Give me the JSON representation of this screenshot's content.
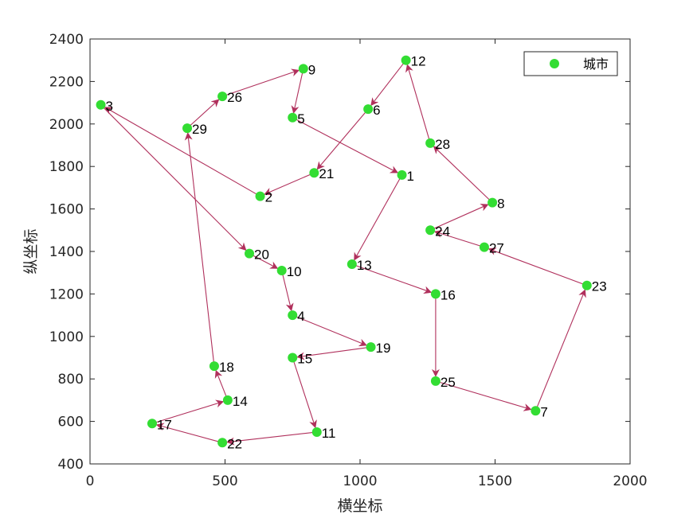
{
  "chart_data": {
    "type": "scatter",
    "xlabel": "横坐标",
    "ylabel": "纵坐标",
    "xlim": [
      0,
      2000
    ],
    "ylim": [
      400,
      2400
    ],
    "xticks": [
      "0",
      "500",
      "1000",
      "1500",
      "2000"
    ],
    "yticks": [
      "400",
      "600",
      "800",
      "1000",
      "1200",
      "1400",
      "1600",
      "1800",
      "2000",
      "2200",
      "2400"
    ],
    "grid": false,
    "legend": {
      "placement": "top-right",
      "entries": [
        "城市"
      ]
    },
    "marker_color": "#33dd33",
    "arrow_color": "#b0305c",
    "series": [
      {
        "name": "城市",
        "points": [
          {
            "id": "1",
            "x": 1155,
            "y": 1760
          },
          {
            "id": "2",
            "x": 630,
            "y": 1660
          },
          {
            "id": "3",
            "x": 40,
            "y": 2090
          },
          {
            "id": "4",
            "x": 750,
            "y": 1100
          },
          {
            "id": "5",
            "x": 750,
            "y": 2030
          },
          {
            "id": "6",
            "x": 1030,
            "y": 2070
          },
          {
            "id": "7",
            "x": 1650,
            "y": 650
          },
          {
            "id": "8",
            "x": 1490,
            "y": 1630
          },
          {
            "id": "9",
            "x": 790,
            "y": 2260
          },
          {
            "id": "10",
            "x": 710,
            "y": 1310
          },
          {
            "id": "11",
            "x": 840,
            "y": 550
          },
          {
            "id": "12",
            "x": 1170,
            "y": 2300
          },
          {
            "id": "13",
            "x": 970,
            "y": 1340
          },
          {
            "id": "14",
            "x": 510,
            "y": 700
          },
          {
            "id": "15",
            "x": 750,
            "y": 900
          },
          {
            "id": "16",
            "x": 1280,
            "y": 1200
          },
          {
            "id": "17",
            "x": 230,
            "y": 590
          },
          {
            "id": "18",
            "x": 460,
            "y": 860
          },
          {
            "id": "19",
            "x": 1040,
            "y": 950
          },
          {
            "id": "20",
            "x": 590,
            "y": 1390
          },
          {
            "id": "21",
            "x": 830,
            "y": 1770
          },
          {
            "id": "22",
            "x": 490,
            "y": 500
          },
          {
            "id": "23",
            "x": 1840,
            "y": 1240
          },
          {
            "id": "24",
            "x": 1260,
            "y": 1500
          },
          {
            "id": "25",
            "x": 1280,
            "y": 790
          },
          {
            "id": "26",
            "x": 490,
            "y": 2130
          },
          {
            "id": "27",
            "x": 1460,
            "y": 1420
          },
          {
            "id": "28",
            "x": 1260,
            "y": 1910
          },
          {
            "id": "29",
            "x": 360,
            "y": 1980
          }
        ]
      }
    ],
    "route": [
      "3",
      "20",
      "10",
      "4",
      "19",
      "15",
      "11",
      "22",
      "17",
      "14",
      "18",
      "29",
      "26",
      "9",
      "5",
      "1",
      "13",
      "16",
      "25",
      "7",
      "23",
      "27",
      "24",
      "8",
      "28",
      "12",
      "6",
      "21",
      "2",
      "3"
    ]
  }
}
